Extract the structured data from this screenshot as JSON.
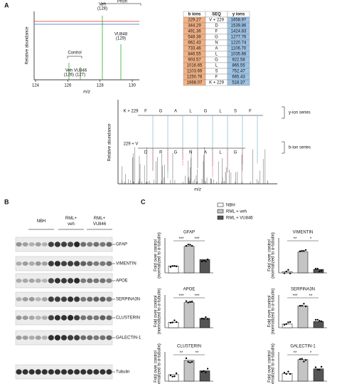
{
  "panel_a": {
    "label": "A",
    "spectrum_top": {
      "prion_label": "Prion",
      "control_label": "Control",
      "ylabel": "Relative abundance",
      "xlabel": "m/z",
      "xticks": [
        124,
        126,
        128,
        130
      ],
      "peaks": [
        {
          "name": "Veh",
          "mass": "(126)"
        },
        {
          "name": "VU846",
          "mass": "(127)"
        },
        {
          "name": "Veh",
          "mass": "(128)"
        },
        {
          "name": "VU848",
          "mass": "(129)"
        }
      ]
    },
    "table": {
      "header": [
        "b ions",
        "SEQ",
        "y ions"
      ],
      "rows": [
        [
          "229.27",
          "V + 229",
          "1658.97"
        ],
        [
          "344.29",
          "D",
          "1539.86"
        ],
        [
          "491.36",
          "F",
          "1424.83"
        ],
        [
          "548.38",
          "G",
          "1277.76"
        ],
        [
          "662.43",
          "N",
          "1220.74"
        ],
        [
          "733.46",
          "A",
          "1106.70"
        ],
        [
          "846.55",
          "L",
          "1035.66"
        ],
        [
          "903.57",
          "G",
          "922.58"
        ],
        [
          "1016.65",
          "L",
          "865.55"
        ],
        [
          "1103.69",
          "S",
          "752.47"
        ],
        [
          "1250.76",
          "F",
          "665.43"
        ],
        [
          "1668.07",
          "K + 229",
          "518.37"
        ]
      ]
    },
    "spectrum_bottom": {
      "ylabel": "Relative abundance",
      "xlabel": "m/z",
      "y_start": "K + 229",
      "b_start": "229 + V",
      "y_letters": [
        "F",
        "G",
        "A",
        "L",
        "G",
        "L",
        "S",
        "F"
      ],
      "b_letters": [
        "D",
        "F",
        "G",
        "N",
        "A",
        "L",
        "G"
      ],
      "y_series": "y-ion series",
      "b_series": "b-ion series"
    }
  },
  "panel_b": {
    "label": "B",
    "groups": [
      "NBH",
      "RML+\nveh",
      "RML+\nVU846"
    ],
    "bands": [
      "GFAP",
      "VIMENTIN",
      "APOE",
      "SERPINA3N",
      "CLUSTERIN",
      "GALECTIN-1",
      "Tubulin"
    ]
  },
  "panel_c": {
    "label": "C",
    "legend": [
      "NBH",
      "RML + veh",
      "RML + VU846"
    ],
    "colors": [
      "#ffffff",
      "#c4c4c4",
      "#555555"
    ],
    "ylabel": [
      "Fold over control",
      "(normalized to α-tubulin)"
    ],
    "charts": [
      {
        "type": "bar",
        "title": "GFAP",
        "values": [
          1,
          3.8,
          1.9
        ],
        "ylim": [
          0,
          5
        ],
        "stars": [
          "***",
          "***"
        ]
      },
      {
        "type": "bar",
        "title": "VIMENTIN",
        "values": [
          0.5,
          9,
          1.5
        ],
        "ylim": [
          0,
          15
        ],
        "stars": [
          "**",
          "*"
        ]
      },
      {
        "type": "bar",
        "title": "APOE",
        "values": [
          1,
          4.6,
          1.7
        ],
        "ylim": [
          0,
          6
        ],
        "stars": [
          "***",
          "***"
        ]
      },
      {
        "type": "bar",
        "title": "SERPINA3N",
        "values": [
          1,
          6,
          1.7
        ],
        "ylim": [
          0,
          9
        ],
        "stars": [
          "***",
          "**"
        ]
      },
      {
        "type": "bar",
        "title": "CLUSTERIN",
        "values": [
          1,
          3.2,
          1.6
        ],
        "ylim": [
          0,
          4.5
        ],
        "stars": [
          "**",
          "**"
        ]
      },
      {
        "type": "bar",
        "title": "GALECTIN-1",
        "values": [
          1,
          2.8,
          1.6
        ],
        "ylim": [
          0,
          3.8
        ],
        "stars": [
          "**",
          "*"
        ]
      }
    ]
  }
}
